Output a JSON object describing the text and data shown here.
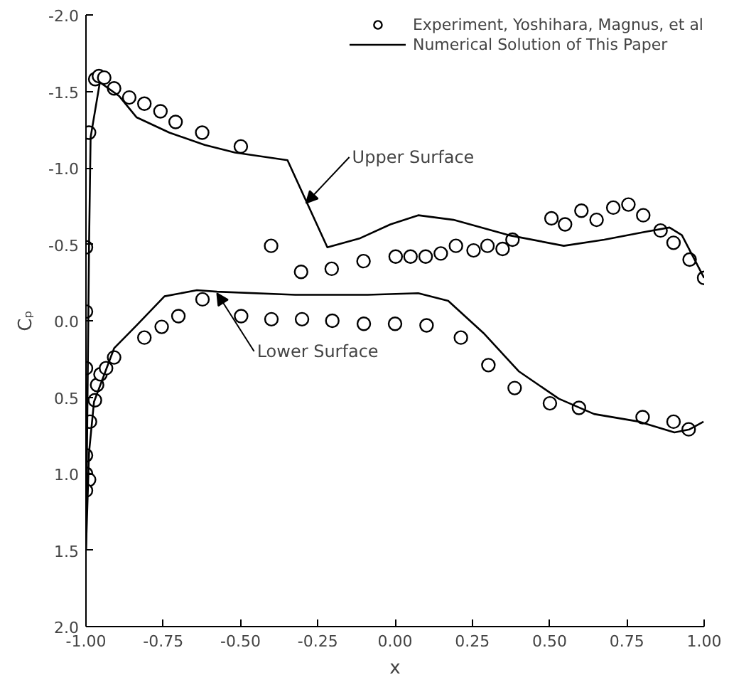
{
  "chart_data": {
    "type": "line",
    "xlabel": "x",
    "ylabel": "Cₚ",
    "xlim": [
      -1.0,
      1.0
    ],
    "ylim": [
      2.0,
      -2.0
    ],
    "xticks": [
      {
        "value": -1.0,
        "label": "-1.00"
      },
      {
        "value": -0.75,
        "label": "-0.75"
      },
      {
        "value": -0.5,
        "label": "-0.50"
      },
      {
        "value": -0.25,
        "label": "-0.25"
      },
      {
        "value": 0.0,
        "label": "0.00"
      },
      {
        "value": 0.25,
        "label": "0.25"
      },
      {
        "value": 0.5,
        "label": "0.50"
      },
      {
        "value": 0.75,
        "label": "0.75"
      },
      {
        "value": 1.0,
        "label": "1.00"
      }
    ],
    "yticks": [
      {
        "value": -2.0,
        "label": "-2.0"
      },
      {
        "value": -1.5,
        "label": "-1.5"
      },
      {
        "value": -1.0,
        "label": "-1.0"
      },
      {
        "value": -0.5,
        "label": "-0.5"
      },
      {
        "value": 0.0,
        "label": "0.0"
      },
      {
        "value": 0.5,
        "label": "0.5"
      },
      {
        "value": 1.0,
        "label": "1.0"
      },
      {
        "value": 1.5,
        "label": "1.5"
      },
      {
        "value": 2.0,
        "label": "2.0"
      }
    ],
    "grid": false,
    "legend": "top right",
    "series": [
      {
        "name": "Experiment, Yoshihara, Magnus, et al",
        "type": "scatter",
        "marker": "circle",
        "color": "#000000",
        "x": [
          -1.0,
          -1.0,
          -0.99,
          -0.97,
          -0.958,
          -0.941,
          -0.909,
          -0.86,
          -0.811,
          -0.759,
          -0.71,
          -0.624,
          -0.499,
          -0.401,
          -0.304,
          -0.205,
          -0.102,
          0.002,
          0.05,
          0.099,
          0.148,
          0.197,
          0.254,
          0.299,
          0.348,
          0.38,
          0.506,
          0.55,
          0.603,
          0.652,
          0.706,
          0.755,
          0.803,
          0.859,
          0.901,
          0.953,
          1.0,
          -1.0,
          -0.987,
          -0.971,
          -0.964,
          -0.953,
          -0.935,
          -0.909,
          -0.811,
          -0.755,
          -0.701,
          -0.623,
          -0.498,
          -0.4,
          -0.301,
          -0.203,
          -0.101,
          0.0,
          0.102,
          0.213,
          0.302,
          0.387,
          0.501,
          0.595,
          0.801,
          0.901,
          0.95,
          -1.0,
          -1.0,
          -0.99,
          -1.0
        ],
        "values": [
          -0.06,
          -0.48,
          -1.23,
          -1.58,
          -1.6,
          -1.59,
          -1.52,
          -1.46,
          -1.42,
          -1.37,
          -1.3,
          -1.23,
          -1.14,
          -0.49,
          -0.32,
          -0.34,
          -0.39,
          -0.42,
          -0.42,
          -0.42,
          -0.44,
          -0.49,
          -0.46,
          -0.49,
          -0.47,
          -0.53,
          -0.67,
          -0.63,
          -0.72,
          -0.66,
          -0.74,
          -0.76,
          -0.69,
          -0.59,
          -0.51,
          -0.4,
          -0.28,
          0.31,
          0.66,
          0.52,
          0.42,
          0.35,
          0.31,
          0.24,
          0.11,
          0.04,
          -0.03,
          -0.14,
          -0.03,
          -0.01,
          -0.01,
          0.0,
          0.02,
          0.02,
          0.03,
          0.11,
          0.29,
          0.44,
          0.54,
          0.57,
          0.63,
          0.66,
          0.71,
          0.88,
          1.0,
          1.04,
          1.11
        ]
      },
      {
        "name": "Numerical Solution of This Paper",
        "marker": "none",
        "line_style": "solid",
        "color": "#000000",
        "x": [
          -1.0,
          -0.995,
          -0.99,
          -0.985,
          -0.955,
          -0.893,
          -0.836,
          -0.73,
          -0.616,
          -0.518,
          -0.348,
          -0.219,
          -0.113,
          -0.015,
          0.075,
          0.189,
          0.367,
          0.546,
          0.677,
          0.806,
          0.888,
          0.928,
          1.0
        ],
        "values": [
          1.5,
          0.5,
          -0.5,
          -1.2,
          -1.56,
          -1.47,
          -1.33,
          -1.23,
          -1.15,
          -1.1,
          -1.05,
          -0.48,
          -0.54,
          -0.63,
          -0.69,
          -0.66,
          -0.56,
          -0.49,
          -0.53,
          -0.58,
          -0.61,
          -0.56,
          -0.28
        ]
      },
      {
        "marker": "none",
        "line_style": "solid",
        "color": "#000000",
        "x": [
          -1.0,
          -0.99,
          -0.974,
          -0.909,
          -0.836,
          -0.746,
          -0.641,
          -0.576,
          -0.323,
          -0.088,
          0.075,
          0.172,
          0.286,
          0.4,
          0.53,
          0.644,
          0.79,
          0.904,
          0.953,
          0.998
        ],
        "values": [
          1.5,
          0.86,
          0.53,
          0.18,
          0.03,
          -0.16,
          -0.2,
          -0.19,
          -0.17,
          -0.17,
          -0.18,
          -0.13,
          0.08,
          0.33,
          0.51,
          0.61,
          0.66,
          0.73,
          0.71,
          0.66
        ]
      }
    ],
    "annotations": [
      {
        "text": "Upper Surface",
        "x": -0.288,
        "y": -0.77
      },
      {
        "text": "Lower Surface",
        "x": -0.576,
        "y": -0.18
      }
    ]
  }
}
